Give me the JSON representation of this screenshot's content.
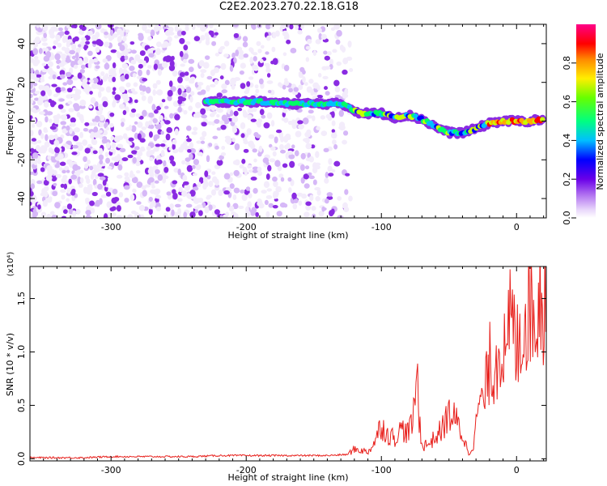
{
  "title": "C2E2.2023.270.22.18.G18",
  "colors": {
    "snr_line": "#e8201c",
    "axis": "#000000",
    "colormap": [
      "#f3ecfb",
      "#d6b8f7",
      "#8a2be2",
      "#0000ff",
      "#00bfff",
      "#00ff66",
      "#c8ff00",
      "#ffaa00",
      "#ff0000",
      "#ff0099"
    ]
  },
  "chart_data": [
    {
      "type": "heatmap",
      "xlabel": "Height of straight line (km)",
      "ylabel": "Frequency (Hz)",
      "xlim": [
        -360,
        22
      ],
      "ylim": [
        -50,
        50
      ],
      "xticks": [
        -300,
        -200,
        -100,
        0
      ],
      "yticks": [
        -40,
        -20,
        0,
        20,
        40
      ],
      "colorbar": {
        "label": "Normalized spectral amplitude",
        "range": [
          0,
          1
        ],
        "ticks": [
          "0.0",
          "0.2",
          "0.4",
          "0.6",
          "0.8"
        ]
      },
      "ridge": {
        "description_values_height_km": [
          -230,
          -210,
          -190,
          -170,
          -150,
          -130,
          -115,
          -100,
          -90,
          -80,
          -70,
          -60,
          -50,
          -40,
          -30,
          -20,
          -10,
          0,
          10,
          20
        ],
        "frequency_hz": [
          10,
          10,
          10,
          9,
          9,
          9,
          4,
          4,
          2,
          3,
          1,
          -3,
          -6,
          -6,
          -4,
          -1,
          0,
          0,
          0,
          1
        ]
      }
    },
    {
      "type": "line",
      "xlabel": "Height of straight line (km)",
      "ylabel": "SNR (10 * v/v)",
      "scale_label": "(x10⁴)",
      "xlim": [
        -360,
        22
      ],
      "ylim": [
        -0.02,
        1.8
      ],
      "xticks": [
        -300,
        -200,
        -100,
        0
      ],
      "yticks": [
        0.0,
        0.5,
        1.0,
        1.5
      ],
      "series": [
        {
          "x": [
            -360,
            -340,
            -320,
            -300,
            -280,
            -260,
            -240,
            -220,
            -200,
            -180,
            -160,
            -140,
            -125,
            -120,
            -115,
            -110,
            -105,
            -100,
            -95,
            -90,
            -85,
            -80,
            -76,
            -74,
            -72,
            -70,
            -65,
            -60,
            -55,
            -50,
            -45,
            -40,
            -35,
            -32,
            -30,
            -28,
            -25,
            -22,
            -20,
            -17,
            -15,
            -12,
            -10,
            -7,
            -5,
            -3,
            0,
            3,
            5,
            8,
            10,
            12,
            15,
            18,
            22
          ],
          "y": [
            0.01,
            0.01,
            0.01,
            0.02,
            0.02,
            0.02,
            0.02,
            0.03,
            0.03,
            0.03,
            0.03,
            0.03,
            0.04,
            0.09,
            0.08,
            0.06,
            0.16,
            0.32,
            0.22,
            0.2,
            0.28,
            0.24,
            0.4,
            0.85,
            0.4,
            0.12,
            0.14,
            0.2,
            0.28,
            0.42,
            0.36,
            0.22,
            0.04,
            0.14,
            0.3,
            0.55,
            0.5,
            0.72,
            0.9,
            0.8,
            0.95,
            1.1,
            1.05,
            0.8,
            1.4,
            1.25,
            1.0,
            1.25,
            1.2,
            1.45,
            1.55,
            1.3,
            1.5,
            1.6,
            1.55
          ]
        }
      ]
    }
  ]
}
